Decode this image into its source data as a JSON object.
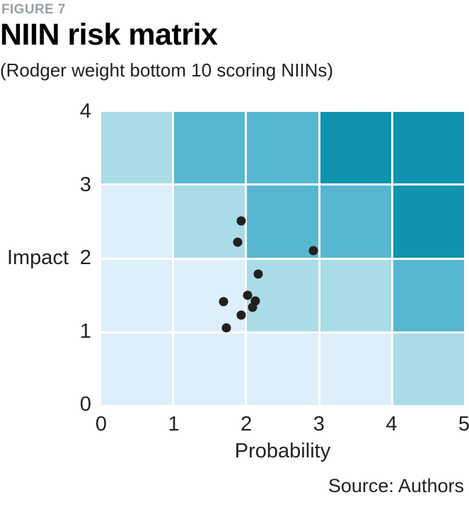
{
  "figure": {
    "label": "FIGURE 7",
    "title": "NIIN risk matrix",
    "subtitle": "(Rodger weight bottom 10 scoring NIINs)",
    "source": "Source: Authors",
    "label_color": "#9aa0a3"
  },
  "chart_data": {
    "type": "scatter",
    "title": "NIIN risk matrix",
    "subtitle": "(Rodger weight bottom 10 scoring NIINs)",
    "xlabel": "Probability",
    "ylabel": "Impact",
    "xlim": [
      0,
      5
    ],
    "ylim": [
      0,
      4
    ],
    "x_ticks": [
      0,
      1,
      2,
      3,
      4,
      5
    ],
    "y_ticks": [
      0,
      1,
      2,
      3,
      4
    ],
    "legend": "none",
    "grid": "white lines between heatmap cells",
    "background_matrix": {
      "description": "Risk-level heatmap behind the scatter. Rows listed top-to-bottom (impact band 3-4 down to 0-1); columns left-to-right (probability band 0-1 to 4-5). Values index level_colors (1 = lightest, 4 = darkest).",
      "rows_top_to_bottom": [
        [
          2,
          3,
          3,
          4,
          4
        ],
        [
          1,
          2,
          3,
          3,
          4
        ],
        [
          1,
          1,
          2,
          2,
          3
        ],
        [
          1,
          1,
          1,
          1,
          2
        ]
      ]
    },
    "level_colors": [
      "#ddeffa",
      "#a9dce6",
      "#58b7d0",
      "#0f93ae"
    ],
    "gridline_color": "#ffffff",
    "point_color": "#231f20",
    "points": [
      {
        "x": 1.93,
        "y": 2.51
      },
      {
        "x": 1.88,
        "y": 2.22
      },
      {
        "x": 2.92,
        "y": 2.11
      },
      {
        "x": 2.16,
        "y": 1.79
      },
      {
        "x": 2.02,
        "y": 1.5
      },
      {
        "x": 2.12,
        "y": 1.42
      },
      {
        "x": 1.69,
        "y": 1.41
      },
      {
        "x": 2.09,
        "y": 1.33
      },
      {
        "x": 1.93,
        "y": 1.23
      },
      {
        "x": 1.73,
        "y": 1.05
      }
    ]
  }
}
